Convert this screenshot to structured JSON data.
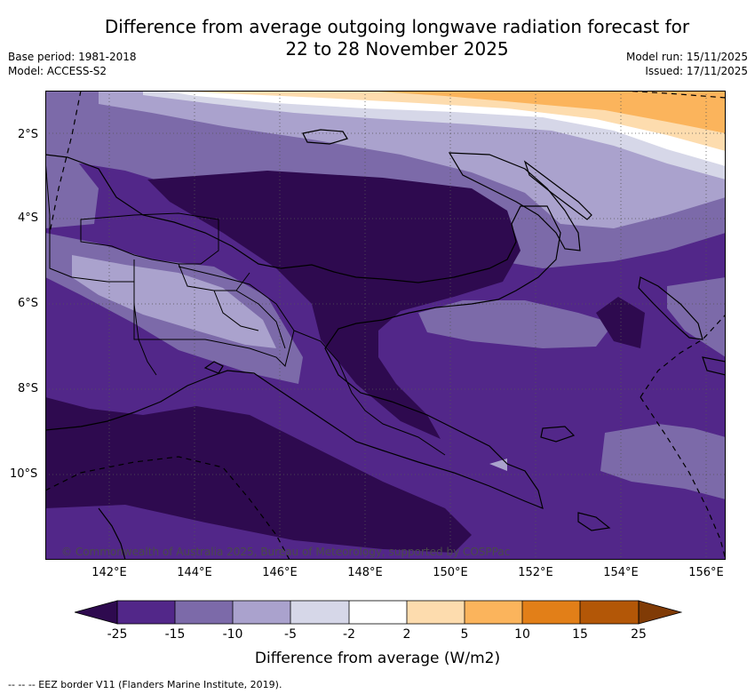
{
  "title_line1": "Difference from average outgoing longwave radiation forecast for",
  "title_line2": "22 to 28 November 2025",
  "base_period": "Base period: 1981-2018",
  "model": "Model: ACCESS-S2",
  "model_run": "Model run: 15/11/2025",
  "issued": "Issued: 17/11/2025",
  "lat_labels": [
    "2°S",
    "4°S",
    "6°S",
    "8°S",
    "10°S"
  ],
  "lon_labels": [
    "142°E",
    "144°E",
    "146°E",
    "148°E",
    "150°E",
    "152°E",
    "154°E",
    "156°E"
  ],
  "colorbar": {
    "ticks": [
      "-25",
      "-15",
      "-10",
      "-5",
      "-2",
      "2",
      "5",
      "10",
      "15",
      "25"
    ],
    "colors": [
      "#2e0a4f",
      "#522789",
      "#7c6aa9",
      "#aaa2cd",
      "#d6d7e8",
      "#ffffff",
      "#fddcae",
      "#fbb45c",
      "#e27f18",
      "#b35707",
      "#803b06"
    ],
    "label": "Difference from average (W/m2)"
  },
  "credit": "© Commonwealth of Australia 2025, Bureau of Meteorology, supported by COSPPac",
  "eez_legend": "-- -- -- EEZ border V11 (Flanders Marine Institute, 2019)."
}
